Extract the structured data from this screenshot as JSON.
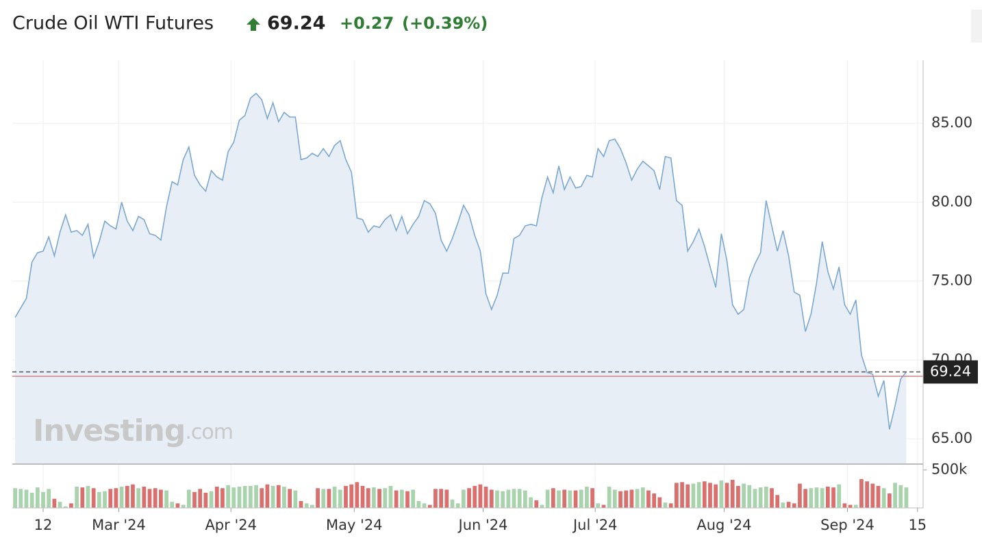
{
  "header": {
    "title": "Crude Oil WTI Futures",
    "price": "69.24",
    "change": "+0.27",
    "change_pct": "(+0.39%)"
  },
  "watermark": {
    "brand": "Investing",
    "suffix": ".com"
  },
  "chart_data": {
    "type": "area",
    "series": [
      {
        "name": "Price",
        "color": "#7ba7d0",
        "fill": "#e8eef6",
        "values": [
          72.7,
          73.3,
          73.9,
          76.2,
          76.8,
          76.9,
          77.8,
          76.6,
          78.1,
          79.2,
          78.1,
          78.2,
          77.9,
          78.6,
          76.5,
          77.5,
          78.8,
          78.5,
          78.3,
          80.0,
          78.8,
          78.2,
          79.1,
          78.9,
          78.0,
          77.9,
          77.6,
          79.7,
          81.3,
          81.1,
          82.7,
          83.5,
          81.7,
          81.1,
          80.7,
          82.0,
          81.6,
          81.4,
          83.2,
          83.8,
          85.2,
          85.5,
          86.6,
          86.9,
          86.5,
          85.3,
          86.3,
          85.1,
          85.7,
          85.4,
          85.4,
          82.7,
          82.8,
          83.1,
          82.9,
          83.4,
          82.9,
          83.6,
          83.9,
          82.7,
          81.9,
          79.0,
          78.9,
          78.1,
          78.5,
          78.4,
          78.9,
          79.2,
          78.2,
          79.1,
          78.0,
          78.6,
          79.1,
          80.1,
          79.9,
          79.3,
          77.6,
          76.9,
          77.7,
          78.7,
          79.8,
          79.2,
          77.9,
          76.9,
          74.2,
          73.2,
          74.1,
          75.5,
          75.5,
          77.7,
          77.9,
          78.5,
          78.6,
          78.5,
          80.3,
          81.6,
          80.6,
          82.3,
          80.8,
          81.6,
          80.9,
          81.0,
          81.7,
          81.6,
          83.4,
          82.9,
          83.9,
          84.0,
          83.4,
          82.5,
          81.4,
          82.1,
          82.6,
          82.3,
          82.0,
          80.8,
          82.9,
          82.8,
          80.1,
          79.8,
          76.9,
          77.5,
          78.3,
          77.2,
          75.9,
          74.6,
          78.0,
          76.3,
          73.5,
          72.9,
          73.2,
          75.2,
          76.1,
          76.8,
          80.1,
          78.5,
          76.9,
          78.2,
          76.6,
          74.3,
          74.1,
          71.8,
          72.9,
          74.9,
          77.5,
          75.6,
          74.5,
          75.9,
          73.5,
          72.9,
          73.8,
          70.3,
          69.2,
          69.1,
          67.7,
          68.7,
          65.6,
          67.1,
          68.8,
          69.24
        ]
      },
      {
        "name": "Volume",
        "axis": "y2",
        "up_color": "#a9d3ad",
        "down_color": "#d9706e",
        "values": [
          260000,
          250000,
          240000,
          200000,
          270000,
          210000,
          250000,
          120000,
          80000,
          20000,
          60000,
          280000,
          270000,
          290000,
          260000,
          210000,
          220000,
          250000,
          260000,
          280000,
          290000,
          310000,
          260000,
          280000,
          250000,
          260000,
          240000,
          230000,
          80000,
          60000,
          40000,
          240000,
          210000,
          250000,
          200000,
          220000,
          280000,
          260000,
          300000,
          270000,
          280000,
          290000,
          290000,
          300000,
          260000,
          310000,
          290000,
          300000,
          280000,
          250000,
          230000,
          90000,
          60000,
          40000,
          260000,
          250000,
          250000,
          280000,
          240000,
          290000,
          310000,
          340000,
          290000,
          260000,
          270000,
          250000,
          260000,
          290000,
          230000,
          240000,
          220000,
          240000,
          90000,
          60000,
          40000,
          250000,
          250000,
          240000,
          110000,
          60000,
          240000,
          260000,
          290000,
          310000,
          280000,
          240000,
          230000,
          220000,
          240000,
          250000,
          250000,
          230000,
          140000,
          100000,
          40000,
          240000,
          260000,
          230000,
          240000,
          230000,
          230000,
          240000,
          280000,
          260000,
          60000,
          40000,
          280000,
          240000,
          220000,
          230000,
          240000,
          250000,
          270000,
          230000,
          190000,
          140000,
          70000,
          60000,
          330000,
          340000,
          310000,
          320000,
          340000,
          350000,
          330000,
          310000,
          360000,
          330000,
          370000,
          290000,
          320000,
          300000,
          250000,
          270000,
          280000,
          260000,
          170000,
          70000,
          80000,
          60000,
          320000,
          250000,
          260000,
          270000,
          260000,
          280000,
          270000,
          310000,
          60000,
          40000,
          40000,
          380000,
          350000,
          320000,
          290000,
          260000,
          190000,
          330000,
          300000,
          270000
        ]
      }
    ],
    "prev_close": 68.97,
    "prev_close_color": "#d9706e",
    "xlim": [
      -0.5,
      162
    ],
    "xticks": [
      {
        "value": 5,
        "label": "12"
      },
      {
        "value": 18.5,
        "label": "Mar '24"
      },
      {
        "value": 38.5,
        "label": "Apr '24"
      },
      {
        "value": 60.5,
        "label": "May '24"
      },
      {
        "value": 83.5,
        "label": "Jun '24"
      },
      {
        "value": 103.5,
        "label": "Jul '24"
      },
      {
        "value": 126.5,
        "label": "Aug '24"
      },
      {
        "value": 148.5,
        "label": "Sep '24"
      },
      {
        "value": 161,
        "label": "15"
      }
    ],
    "ylim": [
      63.4,
      89.0
    ],
    "yticks": [
      {
        "value": 65,
        "label": "65.00"
      },
      {
        "value": 70,
        "label": "70.00"
      },
      {
        "value": 75,
        "label": "75.00"
      },
      {
        "value": 80,
        "label": "80.00"
      },
      {
        "value": 85,
        "label": "85.00"
      }
    ],
    "y2lim": [
      0,
      560000
    ],
    "y2ticks": [
      {
        "value": 500000,
        "label": "500k"
      }
    ],
    "grid": true
  }
}
